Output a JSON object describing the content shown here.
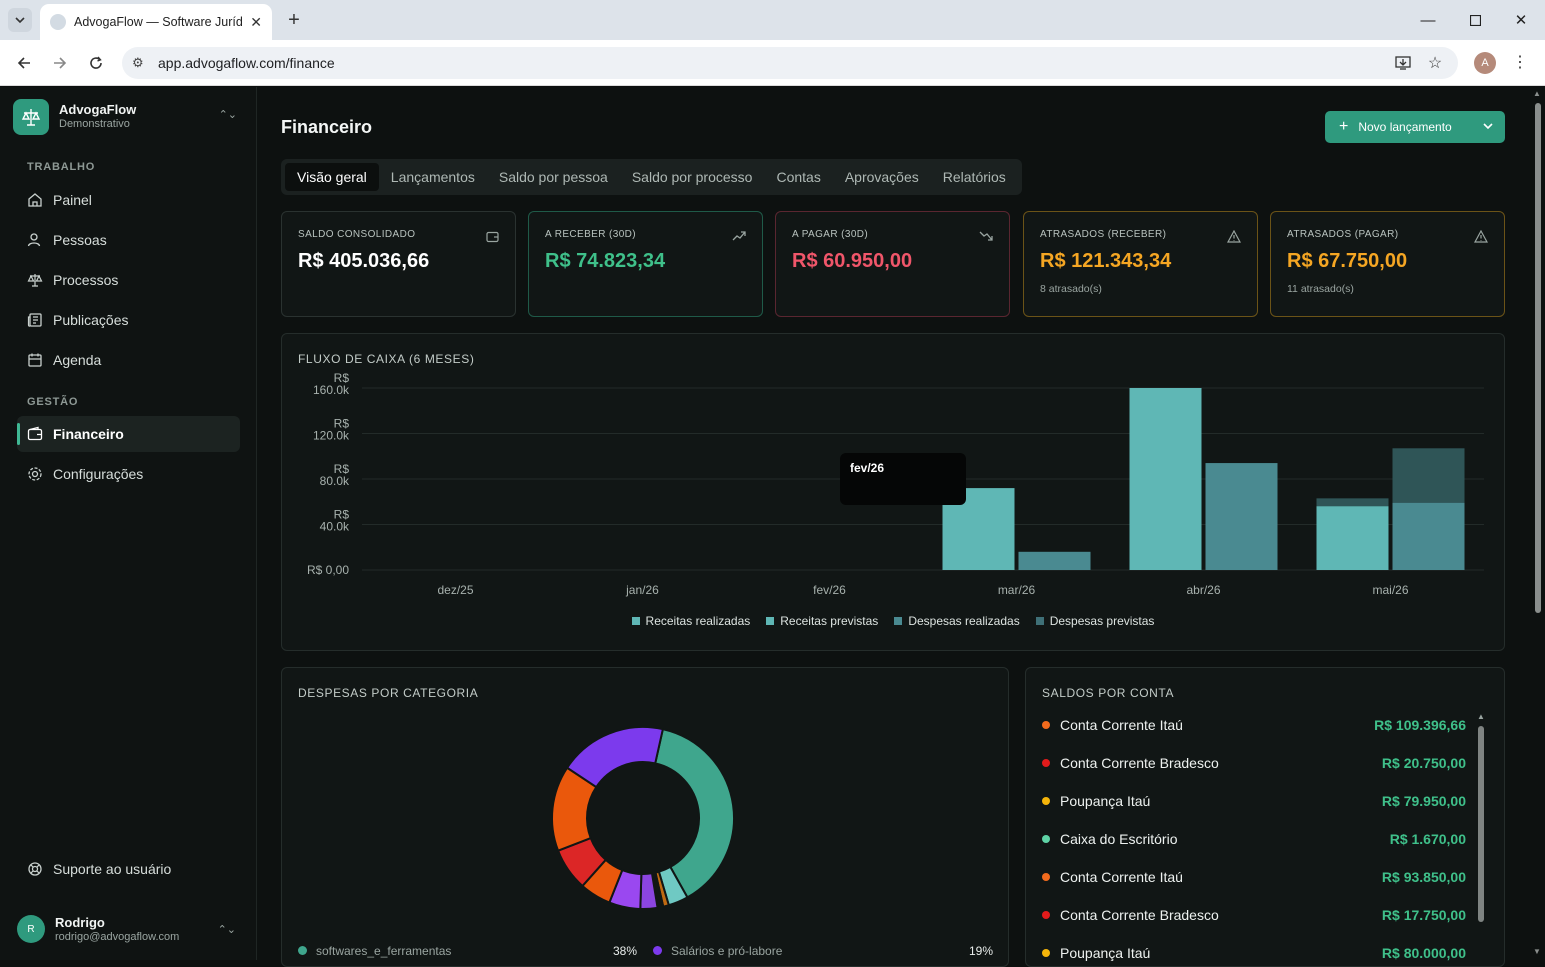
{
  "browser": {
    "tab_title": "AdvogaFlow — Software Jurídico",
    "url": "app.advogaflow.com/finance",
    "profile_initial": "A"
  },
  "sidebar": {
    "brand_name": "AdvogaFlow",
    "brand_sub": "Demonstrativo",
    "section_work": "TRABALHO",
    "work_items": [
      {
        "label": "Painel",
        "icon": "home-icon"
      },
      {
        "label": "Pessoas",
        "icon": "user-icon"
      },
      {
        "label": "Processos",
        "icon": "scale-icon"
      },
      {
        "label": "Publicações",
        "icon": "newspaper-icon"
      },
      {
        "label": "Agenda",
        "icon": "calendar-icon"
      }
    ],
    "section_manage": "GESTÃO",
    "manage_items": [
      {
        "label": "Financeiro",
        "icon": "wallet-icon",
        "active": true
      },
      {
        "label": "Configurações",
        "icon": "gear-icon"
      }
    ],
    "support": "Suporte ao usuário",
    "user": {
      "initial": "R",
      "name": "Rodrigo",
      "email": "rodrigo@advogaflow.com"
    }
  },
  "page": {
    "title": "Financeiro",
    "new_button": "Novo lançamento",
    "tabs": [
      "Visão geral",
      "Lançamentos",
      "Saldo por pessoa",
      "Saldo por processo",
      "Contas",
      "Aprovações",
      "Relatórios"
    ],
    "active_tab": "Visão geral"
  },
  "kpis": [
    {
      "label": "SALDO CONSOLIDADO",
      "value": "R$ 405.036,66",
      "note": "",
      "color": "#ffffff",
      "icon": "wallet-icon"
    },
    {
      "label": "A RECEBER (30D)",
      "value": "R$ 74.823,34",
      "note": "",
      "color": "#3fc08a",
      "icon": "trend-up-icon"
    },
    {
      "label": "A PAGAR (30D)",
      "value": "R$ 60.950,00",
      "note": "",
      "color": "#f0566a",
      "icon": "trend-down-icon"
    },
    {
      "label": "ATRASADOS (RECEBER)",
      "value": "R$ 121.343,34",
      "note": "8 atrasado(s)",
      "color": "#f5a623",
      "icon": "warning-icon"
    },
    {
      "label": "ATRASADOS (PAGAR)",
      "value": "R$ 67.750,00",
      "note": "11 atrasado(s)",
      "color": "#f5a623",
      "icon": "warning-icon"
    }
  ],
  "cashflow": {
    "title": "FLUXO DE CAIXA (6 MESES)",
    "tooltip_label": "fev/26"
  },
  "chart_data": [
    {
      "type": "bar",
      "title": "FLUXO DE CAIXA (6 MESES)",
      "categories": [
        "dez/25",
        "jan/26",
        "fev/26",
        "mar/26",
        "abr/26",
        "mai/26"
      ],
      "y_ticks": [
        "R$ 0,00",
        "R$ 40.0k",
        "R$ 80.0k",
        "R$ 120.0k",
        "R$ 160.0k"
      ],
      "ylim": [
        0,
        160000
      ],
      "grid": true,
      "legend_position": "bottom",
      "series": [
        {
          "name": "Receitas realizadas",
          "color": "#5fb7b5",
          "values": [
            0,
            0,
            0,
            72000,
            160000,
            56000
          ]
        },
        {
          "name": "Receitas previstas",
          "color": "#5fb7b5",
          "values": [
            0,
            0,
            0,
            0,
            0,
            63000
          ]
        },
        {
          "name": "Despesas realizadas",
          "color": "#4a8a91",
          "values": [
            0,
            0,
            0,
            16000,
            94000,
            59000
          ]
        },
        {
          "name": "Despesas previstas",
          "color": "#2f5557",
          "values": [
            0,
            0,
            0,
            0,
            0,
            107000
          ]
        }
      ]
    },
    {
      "type": "pie",
      "title": "DESPESAS POR CATEGORIA",
      "slices": [
        {
          "name": "softwares_e_ferramentas",
          "value": 38,
          "color": "#3fa68d"
        },
        {
          "name": "",
          "value": 3.5,
          "color": "#6fc9c3"
        },
        {
          "name": "",
          "value": 1,
          "color": "#c06a12"
        },
        {
          "name": "",
          "value": 1,
          "color": "#111615"
        },
        {
          "name": "",
          "value": 3,
          "color": "#8b45e0"
        },
        {
          "name": "",
          "value": 5.5,
          "color": "#9a48f0"
        },
        {
          "name": "",
          "value": 5.5,
          "color": "#ea580c"
        },
        {
          "name": "",
          "value": 7.5,
          "color": "#dc2626"
        },
        {
          "name": "",
          "value": 15,
          "color": "#ea580c"
        },
        {
          "name": "Salários e pró-labore",
          "value": 19,
          "color": "#7c3aed"
        }
      ],
      "legend_visible": [
        {
          "name": "softwares_e_ferramentas",
          "pct": "38%",
          "color": "#3fa68d"
        },
        {
          "name": "Salários e pró-labore",
          "pct": "19%",
          "color": "#7c3aed"
        }
      ]
    }
  ],
  "expenses": {
    "title": "DESPESAS POR CATEGORIA"
  },
  "accounts": {
    "title": "SALDOS POR CONTA",
    "rows": [
      {
        "name": "Conta Corrente Itaú",
        "amount": "R$ 109.396,66",
        "color": "#f26b1d"
      },
      {
        "name": "Conta Corrente Bradesco",
        "amount": "R$ 20.750,00",
        "color": "#e21b1b"
      },
      {
        "name": "Poupança Itaú",
        "amount": "R$ 79.950,00",
        "color": "#f5b50a"
      },
      {
        "name": "Caixa do Escritório",
        "amount": "R$ 1.670,00",
        "color": "#5fd3a6"
      },
      {
        "name": "Conta Corrente Itaú",
        "amount": "R$ 93.850,00",
        "color": "#f26b1d"
      },
      {
        "name": "Conta Corrente Bradesco",
        "amount": "R$ 17.750,00",
        "color": "#e21b1b"
      },
      {
        "name": "Poupança Itaú",
        "amount": "R$ 80.000,00",
        "color": "#f5b50a"
      }
    ]
  }
}
